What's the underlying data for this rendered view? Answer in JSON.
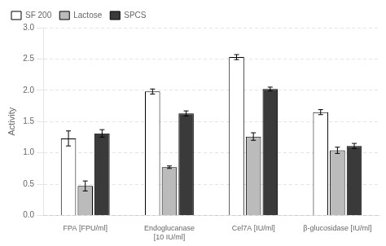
{
  "chart_data": {
    "type": "bar",
    "categories": [
      "FPA [FPU/ml]",
      "Endoglucanase\n[10 IU/ml]",
      "Cel7A [IU/ml]",
      "β-glucosidase [IU/ml]"
    ],
    "series": [
      {
        "name": "SF 200",
        "color": "#ffffff",
        "values": [
          1.23,
          1.98,
          2.53,
          1.65
        ],
        "errors": [
          0.12,
          0.04,
          0.04,
          0.04
        ]
      },
      {
        "name": "Lactose",
        "color": "#bbbbbb",
        "values": [
          0.47,
          0.77,
          1.26,
          1.04
        ],
        "errors": [
          0.08,
          0.02,
          0.06,
          0.05
        ]
      },
      {
        "name": "SPCS",
        "color": "#3a3a3a",
        "values": [
          1.31,
          1.63,
          2.02,
          1.11
        ],
        "errors": [
          0.06,
          0.04,
          0.03,
          0.04
        ]
      }
    ],
    "ylabel": "Activity",
    "ylim": [
      0.0,
      3.0
    ],
    "yticks": [
      {
        "value": 0,
        "label": "0.0"
      },
      0.5,
      {
        "value": 1,
        "label": "1.0"
      },
      1.5,
      {
        "value": 2,
        "label": "2.0"
      },
      2.5,
      {
        "value": 3,
        "label": "3.0"
      }
    ],
    "grid": true,
    "legend": "upper left"
  }
}
